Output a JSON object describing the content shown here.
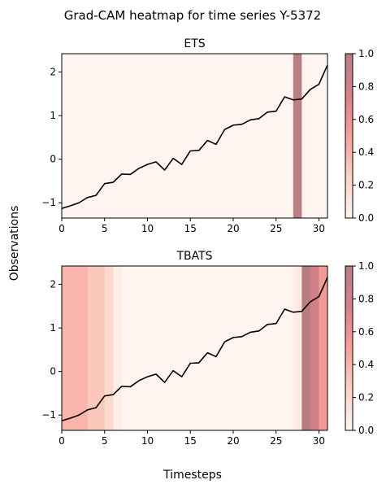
{
  "figure": {
    "title": "Grad-CAM heatmap for time series Y-5372",
    "xlabel": "Timesteps",
    "ylabel": "Observations"
  },
  "colors": {
    "line": "#000000",
    "cmap": [
      "#fff7f3",
      "#fdd2c4",
      "#f7a09b",
      "#d9808a",
      "#b87e82"
    ]
  },
  "chart_data": [
    {
      "type": "line",
      "title": "ETS",
      "x": [
        0,
        1,
        2,
        3,
        4,
        5,
        6,
        7,
        8,
        9,
        10,
        11,
        12,
        13,
        14,
        15,
        16,
        17,
        18,
        19,
        20,
        21,
        22,
        23,
        24,
        25,
        26,
        27,
        28,
        29,
        30,
        31
      ],
      "y": [
        -1.13,
        -1.07,
        -1.0,
        -0.88,
        -0.83,
        -0.56,
        -0.53,
        -0.34,
        -0.35,
        -0.21,
        -0.12,
        -0.06,
        -0.25,
        0.02,
        -0.12,
        0.19,
        0.2,
        0.43,
        0.34,
        0.68,
        0.78,
        0.8,
        0.9,
        0.93,
        1.08,
        1.1,
        1.43,
        1.36,
        1.38,
        1.6,
        1.72,
        2.16
      ],
      "heatmap": [
        0.02,
        0.02,
        0.02,
        0.02,
        0.02,
        0.02,
        0.02,
        0.02,
        0.02,
        0.02,
        0.02,
        0.02,
        0.02,
        0.02,
        0.02,
        0.02,
        0.02,
        0.02,
        0.02,
        0.02,
        0.02,
        0.02,
        0.02,
        0.02,
        0.02,
        0.02,
        0.02,
        1.0,
        0.02,
        0.02,
        0.02
      ],
      "xlim": [
        0,
        31
      ],
      "ylim": [
        -1.35,
        2.42
      ],
      "xticks": [
        0,
        5,
        10,
        15,
        20,
        25,
        30
      ],
      "yticks": [
        -1,
        0,
        1,
        2
      ],
      "colorbar": {
        "range": [
          0,
          1
        ],
        "ticks": [
          "0.0",
          "0.2",
          "0.4",
          "0.6",
          "0.8",
          "1.0"
        ]
      }
    },
    {
      "type": "line",
      "title": "TBATS",
      "x": [
        0,
        1,
        2,
        3,
        4,
        5,
        6,
        7,
        8,
        9,
        10,
        11,
        12,
        13,
        14,
        15,
        16,
        17,
        18,
        19,
        20,
        21,
        22,
        23,
        24,
        25,
        26,
        27,
        28,
        29,
        30,
        31
      ],
      "y": [
        -1.13,
        -1.07,
        -1.0,
        -0.88,
        -0.83,
        -0.56,
        -0.53,
        -0.34,
        -0.35,
        -0.21,
        -0.12,
        -0.06,
        -0.25,
        0.02,
        -0.12,
        0.19,
        0.2,
        0.43,
        0.34,
        0.68,
        0.78,
        0.8,
        0.9,
        0.93,
        1.08,
        1.1,
        1.43,
        1.36,
        1.38,
        1.6,
        1.72,
        2.16
      ],
      "heatmap": [
        0.4,
        0.4,
        0.4,
        0.3,
        0.3,
        0.2,
        0.07,
        0.02,
        0.02,
        0.02,
        0.02,
        0.02,
        0.02,
        0.02,
        0.02,
        0.02,
        0.02,
        0.02,
        0.02,
        0.02,
        0.02,
        0.02,
        0.02,
        0.02,
        0.02,
        0.02,
        0.02,
        0.08,
        1.0,
        0.8,
        0.55
      ],
      "xlim": [
        0,
        31
      ],
      "ylim": [
        -1.35,
        2.42
      ],
      "xticks": [
        0,
        5,
        10,
        15,
        20,
        25,
        30
      ],
      "yticks": [
        -1,
        0,
        1,
        2
      ],
      "colorbar": {
        "range": [
          0,
          1
        ],
        "ticks": [
          "0.0",
          "0.2",
          "0.4",
          "0.6",
          "0.8",
          "1.0"
        ]
      }
    }
  ]
}
